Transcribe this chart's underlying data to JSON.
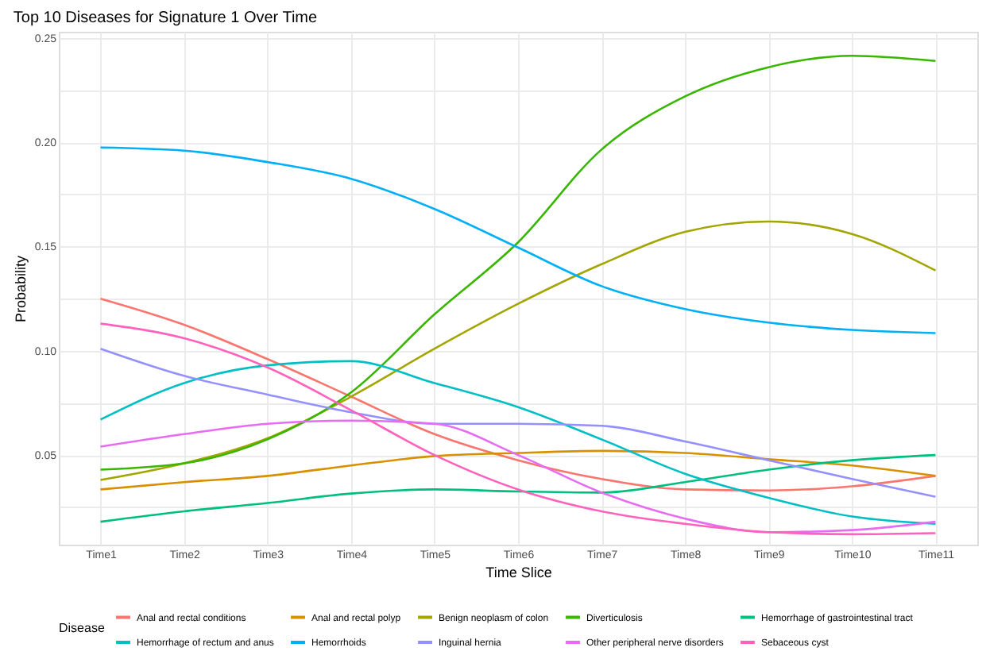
{
  "chart_data": {
    "type": "line",
    "title": "Top 10 Diseases for Signature 1 Over Time",
    "xlabel": "Time Slice",
    "ylabel": "Probability",
    "legend_title": "Disease",
    "categories": [
      "Time1",
      "Time2",
      "Time3",
      "Time4",
      "Time5",
      "Time6",
      "Time7",
      "Time8",
      "Time9",
      "Time10",
      "Time11"
    ],
    "series": [
      {
        "name": "Anal and rectal conditions",
        "color": "#f8766d",
        "values": [
          0.125,
          0.1125,
          0.096,
          0.078,
          0.06,
          0.0475,
          0.0385,
          0.0335,
          0.033,
          0.035,
          0.04
        ]
      },
      {
        "name": "Anal and rectal polyp",
        "color": "#d89000",
        "values": [
          0.0335,
          0.037,
          0.04,
          0.045,
          0.0495,
          0.051,
          0.052,
          0.051,
          0.048,
          0.045,
          0.04
        ]
      },
      {
        "name": "Benign neoplasm of colon",
        "color": "#a3a500",
        "values": [
          0.038,
          0.046,
          0.058,
          0.078,
          0.101,
          0.1225,
          0.1415,
          0.157,
          0.162,
          0.156,
          0.1385
        ]
      },
      {
        "name": "Diverticulosis",
        "color": "#39b600",
        "values": [
          0.043,
          0.046,
          0.0575,
          0.08,
          0.1175,
          0.152,
          0.1965,
          0.222,
          0.236,
          0.2415,
          0.239
        ]
      },
      {
        "name": "Hemorrhage of gastrointestinal tract",
        "color": "#00bf7d",
        "values": [
          0.018,
          0.023,
          0.027,
          0.0315,
          0.0335,
          0.0325,
          0.032,
          0.037,
          0.043,
          0.0475,
          0.05
        ]
      },
      {
        "name": "Hemorrhage of rectum and anus",
        "color": "#00bfc4",
        "values": [
          0.067,
          0.0845,
          0.093,
          0.095,
          0.0845,
          0.073,
          0.0575,
          0.041,
          0.0295,
          0.0205,
          0.017
        ]
      },
      {
        "name": "Hemorrhoids",
        "color": "#00b0f6",
        "values": [
          0.1975,
          0.196,
          0.1905,
          0.1825,
          0.168,
          0.1495,
          0.131,
          0.12,
          0.1135,
          0.11,
          0.1085
        ]
      },
      {
        "name": "Inguinal hernia",
        "color": "#9590ff",
        "values": [
          0.101,
          0.088,
          0.079,
          0.0705,
          0.065,
          0.065,
          0.064,
          0.0565,
          0.0475,
          0.0385,
          0.03
        ]
      },
      {
        "name": "Other peripheral nerve disorders",
        "color": "#e76bf3",
        "values": [
          0.054,
          0.06,
          0.065,
          0.0665,
          0.065,
          0.05,
          0.032,
          0.0195,
          0.013,
          0.014,
          0.018
        ]
      },
      {
        "name": "Sebaceous cyst",
        "color": "#ff62bc",
        "values": [
          0.113,
          0.106,
          0.092,
          0.0715,
          0.05,
          0.0335,
          0.023,
          0.017,
          0.013,
          0.012,
          0.0125
        ]
      }
    ],
    "ylim": [
      0.007,
      0.253
    ],
    "yticks": [
      {
        "value": 0.025,
        "label": null
      },
      0.05,
      {
        "value": 0.075,
        "label": null
      },
      {
        "value": 0.1,
        "label": "0.10"
      },
      {
        "value": 0.125,
        "label": null
      },
      0.15,
      {
        "value": 0.175,
        "label": null
      },
      {
        "value": 0.2,
        "label": "0.20"
      },
      {
        "value": 0.225,
        "label": null
      },
      0.25
    ],
    "grid": true,
    "legend": "bottom",
    "line_style": "solid"
  }
}
